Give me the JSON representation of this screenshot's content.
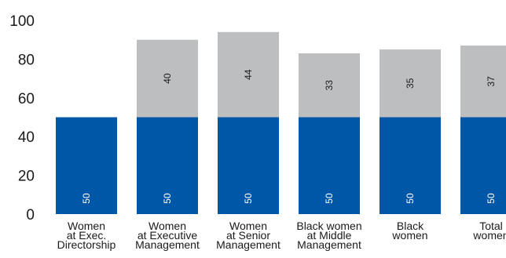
{
  "chart_data": {
    "type": "bar",
    "stacked": true,
    "categories": [
      [
        "Women",
        "at Exec.",
        "Directorship"
      ],
      [
        "Women",
        "at Executive",
        "Management"
      ],
      [
        "Women",
        "at Senior",
        "Management"
      ],
      [
        "Black women",
        "at Middle",
        "Management"
      ],
      [
        "Black",
        "women"
      ],
      [
        "Total",
        "women"
      ]
    ],
    "series": [
      {
        "values": [
          50,
          50,
          50,
          50,
          50,
          50
        ],
        "color": "#0057a8"
      },
      {
        "values": [
          0,
          40,
          44,
          33,
          35,
          37
        ],
        "color": "#bdbec0"
      }
    ],
    "ylim": [
      0,
      100
    ],
    "yticks": [
      0,
      20,
      40,
      60,
      80,
      100
    ],
    "grid": false,
    "title": "",
    "xlabel": "",
    "ylabel": ""
  }
}
